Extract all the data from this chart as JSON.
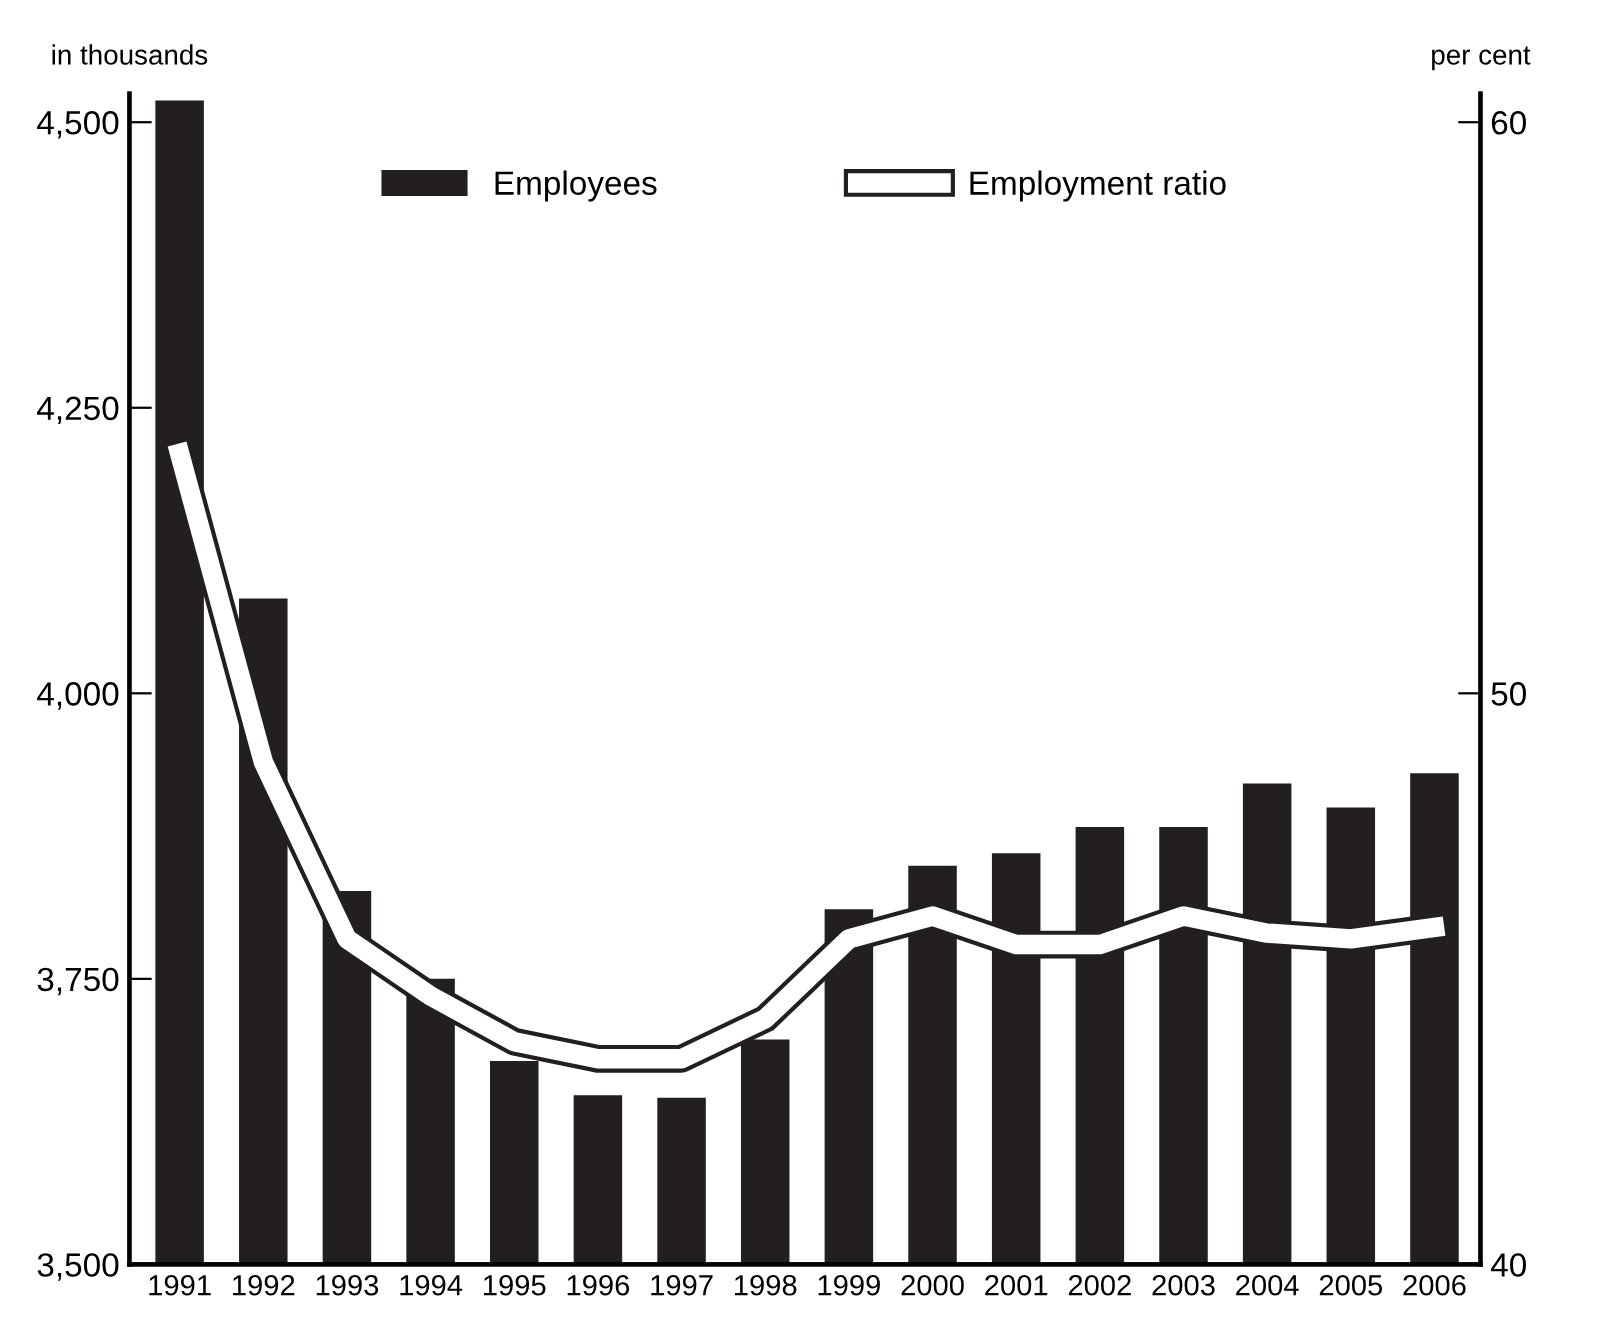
{
  "chart_data": {
    "type": "bar",
    "ylabel": "in thousands",
    "y2label": "per cent",
    "categories": [
      "1991",
      "1992",
      "1993",
      "1994",
      "1995",
      "1996",
      "1997",
      "1998",
      "1999",
      "2000",
      "2001",
      "2002",
      "2003",
      "2004",
      "2005",
      "2006"
    ],
    "series": [
      {
        "name": "Employees",
        "color": "#231f20",
        "values": [
          4519,
          4083,
          3827,
          3750,
          3678,
          3648,
          3646,
          3697,
          3811,
          3849,
          3860,
          3883,
          3883,
          3921,
          3900,
          3930
        ]
      },
      {
        "name": "Employment ratio",
        "type": "line",
        "axis": "y2",
        "color": "#ffffff",
        "values": [
          54.2,
          48.8,
          45.7,
          44.7,
          43.9,
          43.6,
          43.6,
          44.3,
          45.7,
          46.1,
          45.6,
          45.6,
          46.1,
          45.8,
          45.7,
          45.9
        ]
      }
    ],
    "ylim": [
      3500,
      4525
    ],
    "yticks": [
      {
        "value": 3500,
        "label": "3,500"
      },
      {
        "value": 3750,
        "label": "3,750"
      },
      {
        "value": 4000,
        "label": "4,000"
      },
      {
        "value": 4250,
        "label": "4,250"
      },
      {
        "value": 4500,
        "label": "4,500"
      }
    ],
    "y2lim": [
      40,
      60.5
    ],
    "y2ticks": [
      40,
      50,
      60
    ],
    "legend": "top",
    "grid": false,
    "marker": "none"
  }
}
